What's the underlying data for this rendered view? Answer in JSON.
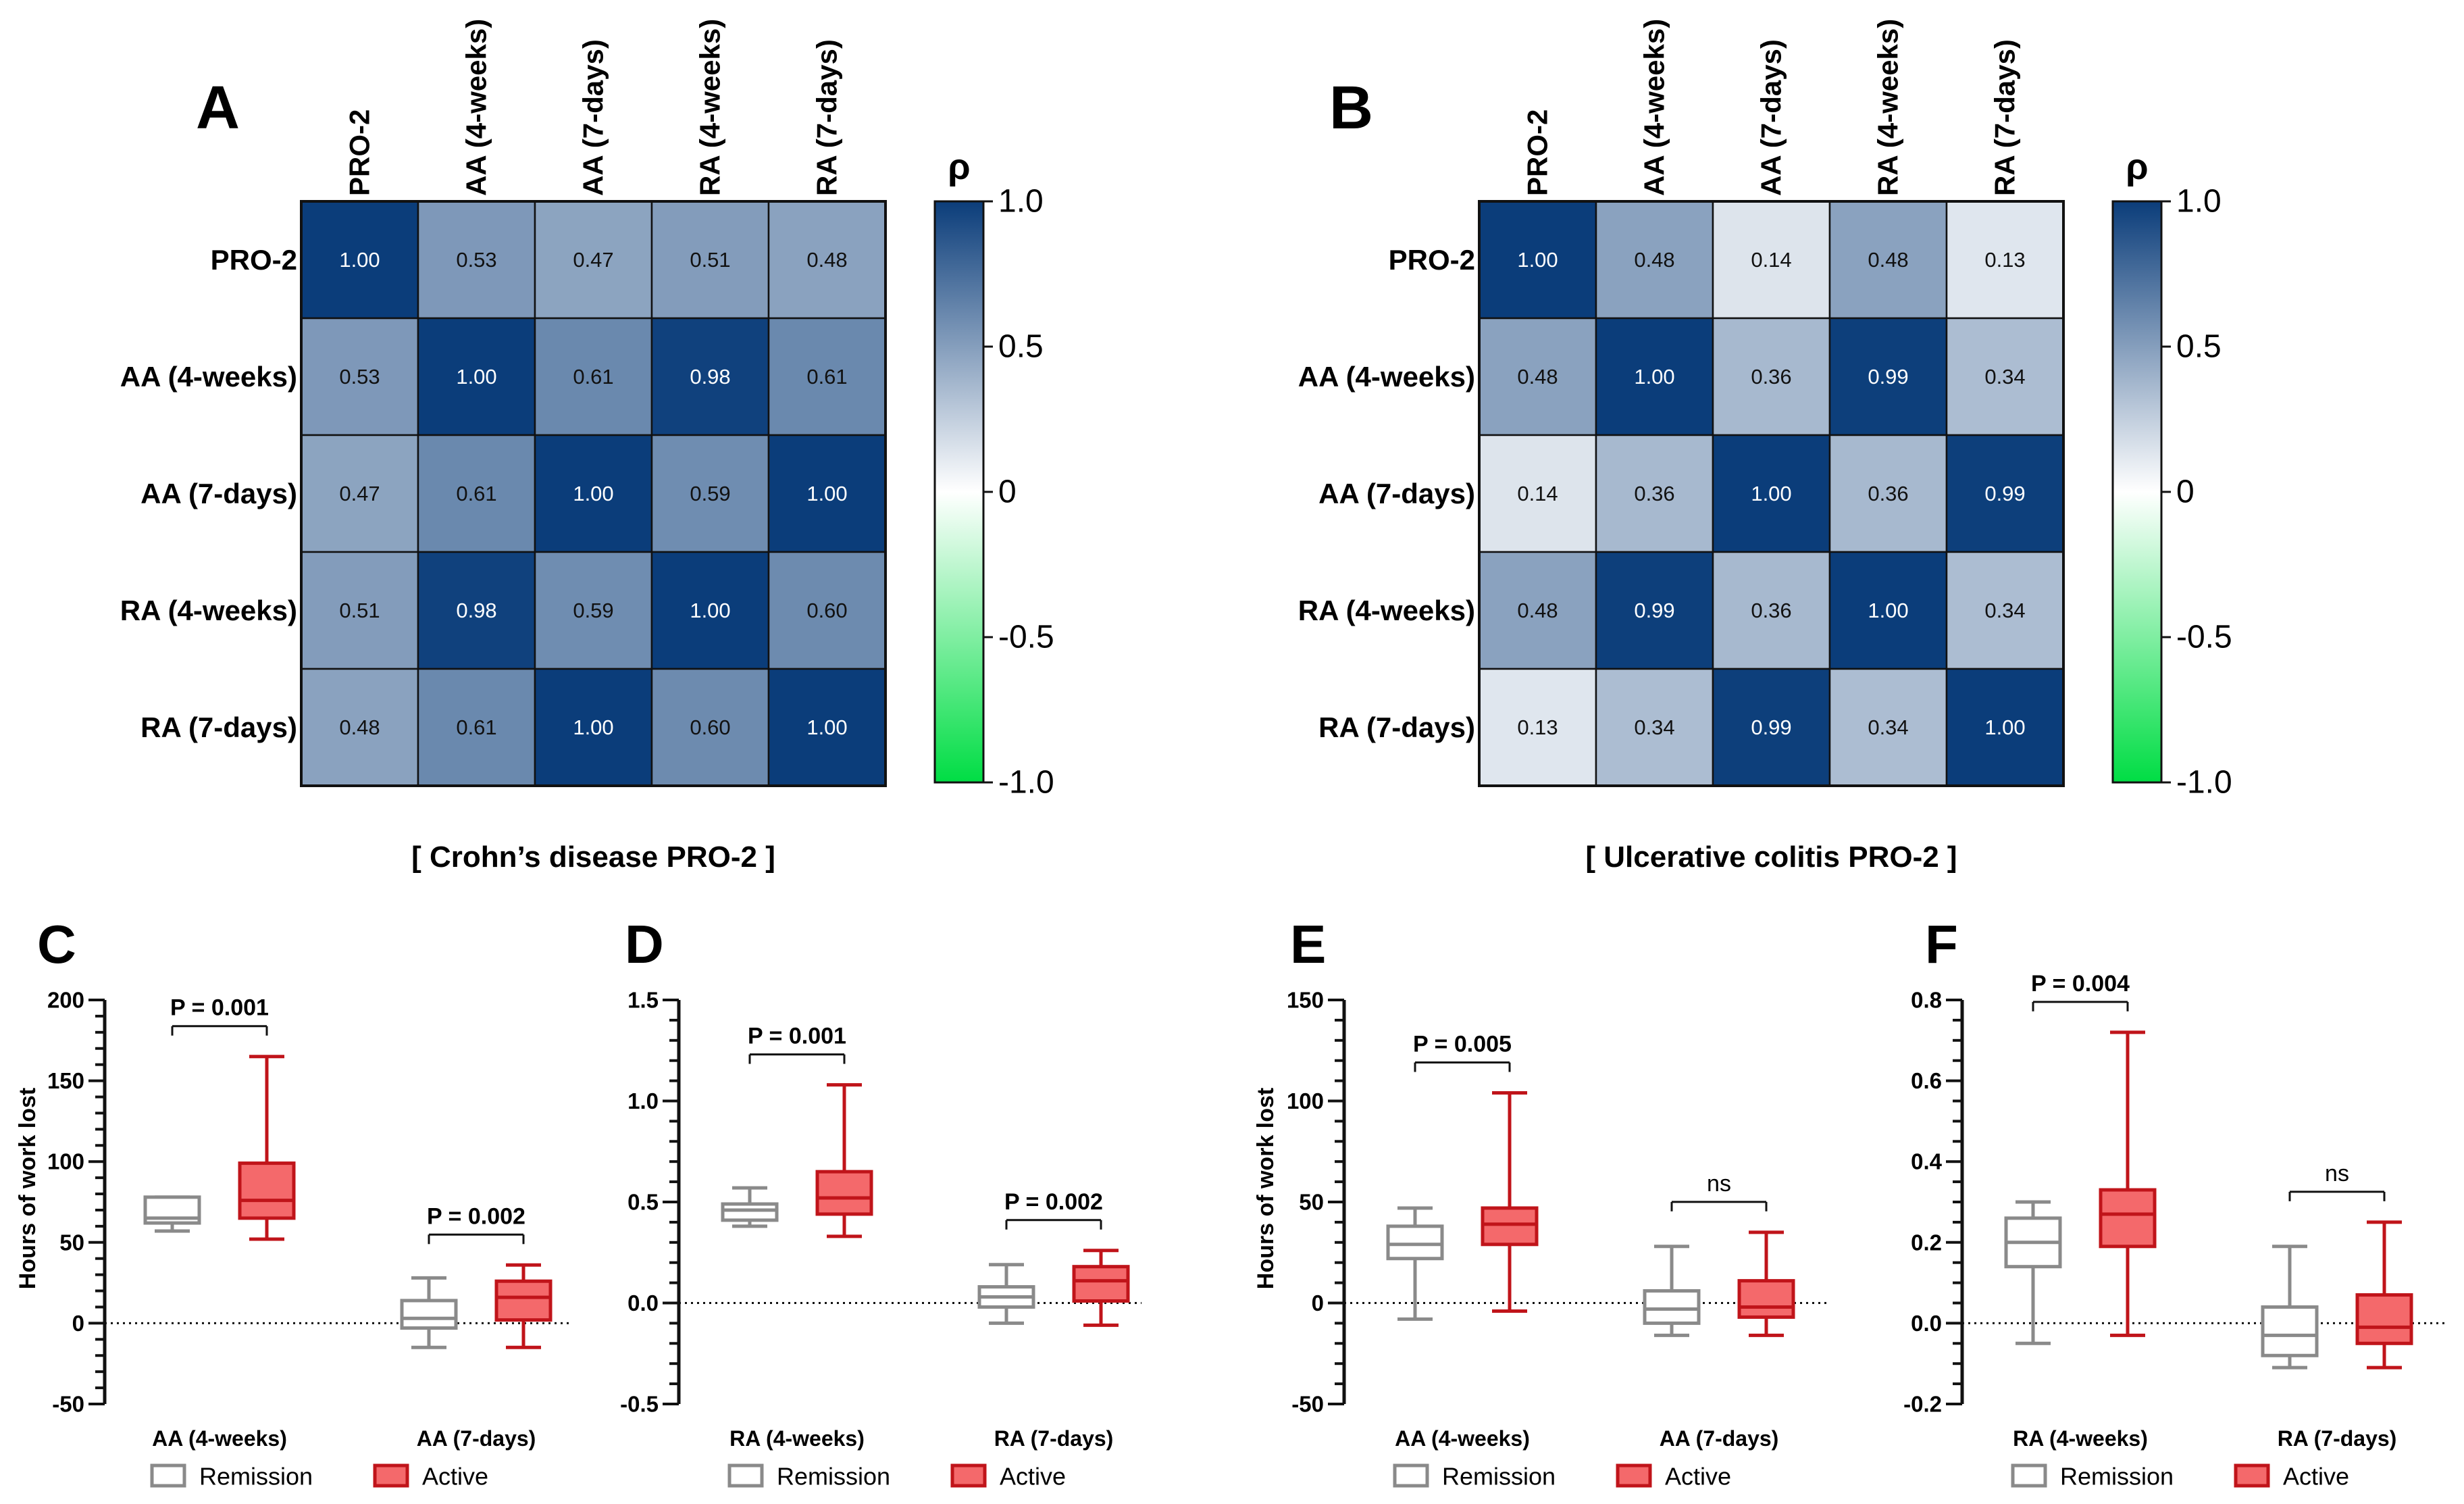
{
  "colors": {
    "high": "#0b3d7a",
    "mid": "#ffffff",
    "low": "#00dd44",
    "remission": "#8a8a8a",
    "active_fill": "#f4696b",
    "active_edge": "#c0141a"
  },
  "heatmaps": [
    {
      "letter": "A",
      "caption": "[ Crohn’s disease PRO-2 ]",
      "labels": [
        "PRO-2",
        "AA (4-weeks)",
        "AA (7-days)",
        "RA (4-weeks)",
        "RA (7-days)"
      ],
      "matrix": [
        [
          1.0,
          0.53,
          0.47,
          0.51,
          0.48
        ],
        [
          0.53,
          1.0,
          0.61,
          0.98,
          0.61
        ],
        [
          0.47,
          0.61,
          1.0,
          0.59,
          1.0
        ],
        [
          0.51,
          0.98,
          0.59,
          1.0,
          0.6
        ],
        [
          0.48,
          0.61,
          1.0,
          0.6,
          1.0
        ]
      ],
      "colorbar": {
        "title": "ρ",
        "ticks": [
          "1.0",
          "0.5",
          "0",
          "-0.5",
          "-1.0"
        ],
        "range": [
          -1,
          1
        ]
      }
    },
    {
      "letter": "B",
      "caption": "[ Ulcerative colitis PRO-2 ]",
      "labels": [
        "PRO-2",
        "AA (4-weeks)",
        "AA (7-days)",
        "RA (4-weeks)",
        "RA (7-days)"
      ],
      "matrix": [
        [
          1.0,
          0.48,
          0.14,
          0.48,
          0.13
        ],
        [
          0.48,
          1.0,
          0.36,
          0.99,
          0.34
        ],
        [
          0.14,
          0.36,
          1.0,
          0.36,
          0.99
        ],
        [
          0.48,
          0.99,
          0.36,
          1.0,
          0.34
        ],
        [
          0.13,
          0.34,
          0.99,
          0.34,
          1.0
        ]
      ],
      "colorbar": {
        "title": "ρ",
        "ticks": [
          "1.0",
          "0.5",
          "0",
          "-0.5",
          "-1.0"
        ],
        "range": [
          -1,
          1
        ]
      }
    }
  ],
  "chart_data": [
    {
      "type": "heatmap",
      "title": "A",
      "caption": "[ Crohn’s disease PRO-2 ]",
      "rows": [
        "PRO-2",
        "AA (4-weeks)",
        "AA (7-days)",
        "RA (4-weeks)",
        "RA (7-days)"
      ],
      "cols": [
        "PRO-2",
        "AA (4-weeks)",
        "AA (7-days)",
        "RA (4-weeks)",
        "RA (7-days)"
      ],
      "values": [
        [
          1.0,
          0.53,
          0.47,
          0.51,
          0.48
        ],
        [
          0.53,
          1.0,
          0.61,
          0.98,
          0.61
        ],
        [
          0.47,
          0.61,
          1.0,
          0.59,
          1.0
        ],
        [
          0.51,
          0.98,
          0.59,
          1.0,
          0.6
        ],
        [
          0.48,
          0.61,
          1.0,
          0.6,
          1.0
        ]
      ]
    },
    {
      "type": "heatmap",
      "title": "B",
      "caption": "[ Ulcerative colitis PRO-2 ]",
      "rows": [
        "PRO-2",
        "AA (4-weeks)",
        "AA (7-days)",
        "RA (4-weeks)",
        "RA (7-days)"
      ],
      "cols": [
        "PRO-2",
        "AA (4-weeks)",
        "AA (7-days)",
        "RA (4-weeks)",
        "RA (7-days)"
      ],
      "values": [
        [
          1.0,
          0.48,
          0.14,
          0.48,
          0.13
        ],
        [
          0.48,
          1.0,
          0.36,
          0.99,
          0.34
        ],
        [
          0.14,
          0.36,
          1.0,
          0.36,
          0.99
        ],
        [
          0.48,
          0.99,
          0.36,
          1.0,
          0.34
        ],
        [
          0.13,
          0.34,
          0.99,
          0.34,
          1.0
        ]
      ]
    }
  ],
  "boxplots": [
    {
      "letter": "C",
      "ylabel": "Hours of work lost",
      "ylim": [
        -50,
        200
      ],
      "ticks": [
        -50,
        0,
        50,
        100,
        150,
        200
      ],
      "tick_labels": [
        "-50",
        "0",
        "50",
        "100",
        "150",
        "200"
      ],
      "minor_per_major": 5,
      "groups": [
        {
          "label": "AA (4-weeks)",
          "annotation": "P = 0.001",
          "remission": {
            "min": 57,
            "q1": 62,
            "median": 65,
            "q3": 78,
            "max": 78
          },
          "active": {
            "min": 52,
            "q1": 65,
            "median": 76,
            "q3": 99,
            "max": 165
          }
        },
        {
          "label": "AA (7-days)",
          "annotation": "P = 0.002",
          "remission": {
            "min": -15,
            "q1": -3,
            "median": 3,
            "q3": 14,
            "max": 28
          },
          "active": {
            "min": -15,
            "q1": 2,
            "median": 16,
            "q3": 26,
            "max": 36
          }
        }
      ],
      "legend": [
        "Remission",
        "Active"
      ]
    },
    {
      "letter": "D",
      "ylabel": "",
      "ylim": [
        -0.5,
        1.5
      ],
      "ticks": [
        -0.5,
        0,
        0.5,
        1.0,
        1.5
      ],
      "tick_labels": [
        "-0.5",
        "0.0",
        "0.5",
        "1.0",
        "1.5"
      ],
      "minor_per_major": 5,
      "groups": [
        {
          "label": "RA (4-weeks)",
          "annotation": "P = 0.001",
          "remission": {
            "min": 0.38,
            "q1": 0.41,
            "median": 0.46,
            "q3": 0.49,
            "max": 0.57
          },
          "active": {
            "min": 0.33,
            "q1": 0.44,
            "median": 0.52,
            "q3": 0.65,
            "max": 1.08
          }
        },
        {
          "label": "RA (7-days)",
          "annotation": "P = 0.002",
          "remission": {
            "min": -0.1,
            "q1": -0.02,
            "median": 0.03,
            "q3": 0.08,
            "max": 0.19
          },
          "active": {
            "min": -0.11,
            "q1": 0.01,
            "median": 0.11,
            "q3": 0.18,
            "max": 0.26
          }
        }
      ],
      "legend": [
        "Remission",
        "Active"
      ]
    },
    {
      "letter": "E",
      "ylabel": "Hours of work lost",
      "ylim": [
        -50,
        150
      ],
      "ticks": [
        -50,
        0,
        50,
        100,
        150
      ],
      "tick_labels": [
        "-50",
        "0",
        "50",
        "100",
        "150"
      ],
      "minor_per_major": 5,
      "groups": [
        {
          "label": "AA (4-weeks)",
          "annotation": "P = 0.005",
          "remission": {
            "min": -8,
            "q1": 22,
            "median": 29,
            "q3": 38,
            "max": 47
          },
          "active": {
            "min": -4,
            "q1": 29,
            "median": 39,
            "q3": 47,
            "max": 104
          }
        },
        {
          "label": "AA (7-days)",
          "annotation": "ns",
          "remission": {
            "min": -16,
            "q1": -10,
            "median": -3,
            "q3": 6,
            "max": 28
          },
          "active": {
            "min": -16,
            "q1": -7,
            "median": -2,
            "q3": 11,
            "max": 35
          }
        }
      ],
      "legend": [
        "Remission",
        "Active"
      ]
    },
    {
      "letter": "F",
      "ylabel": "",
      "ylim": [
        -0.2,
        0.8
      ],
      "ticks": [
        -0.2,
        0,
        0.2,
        0.4,
        0.6,
        0.8
      ],
      "tick_labels": [
        "-0.2",
        "0.0",
        "0.2",
        "0.4",
        "0.6",
        "0.8"
      ],
      "minor_per_major": 4,
      "groups": [
        {
          "label": "RA (4-weeks)",
          "annotation": "P = 0.004",
          "remission": {
            "min": -0.05,
            "q1": 0.14,
            "median": 0.2,
            "q3": 0.26,
            "max": 0.3
          },
          "active": {
            "min": -0.03,
            "q1": 0.19,
            "median": 0.27,
            "q3": 0.33,
            "max": 0.72
          }
        },
        {
          "label": "RA (7-days)",
          "annotation": "ns",
          "remission": {
            "min": -0.11,
            "q1": -0.08,
            "median": -0.03,
            "q3": 0.04,
            "max": 0.19
          },
          "active": {
            "min": -0.11,
            "q1": -0.05,
            "median": -0.01,
            "q3": 0.07,
            "max": 0.25
          }
        }
      ],
      "legend": [
        "Remission",
        "Active"
      ]
    }
  ]
}
